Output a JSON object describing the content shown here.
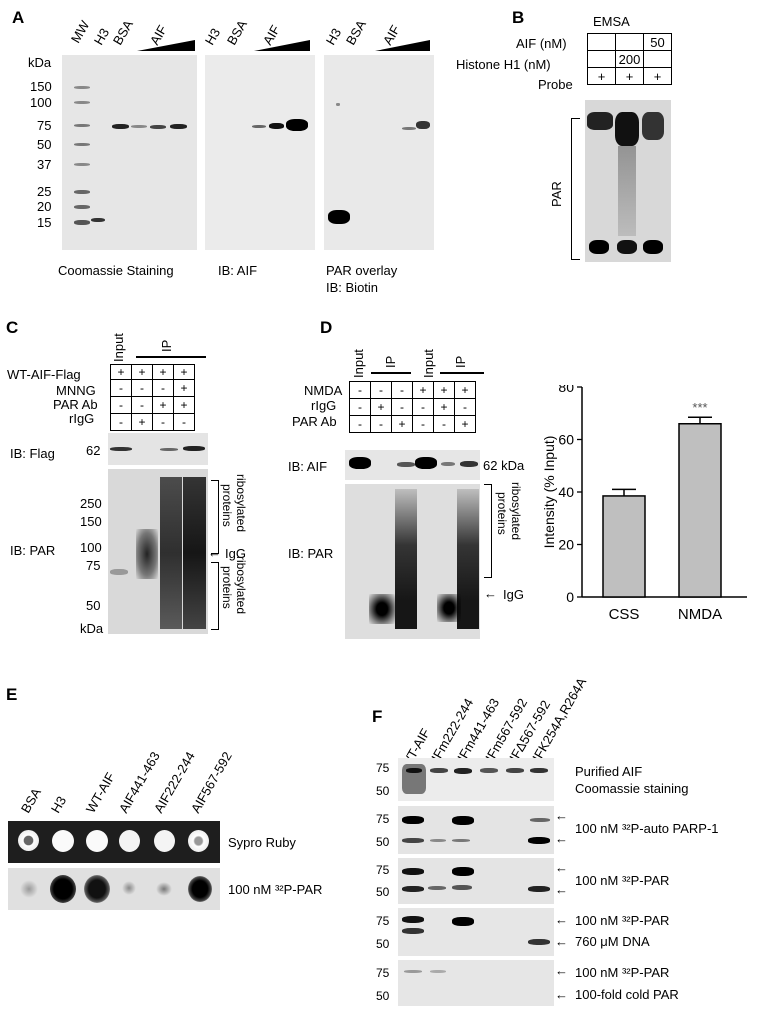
{
  "panels": {
    "A": {
      "letter": "A",
      "kda": "kDa",
      "markers": [
        "150",
        "100",
        "75",
        "50",
        "37",
        "25",
        "20",
        "15"
      ],
      "blot1_lanes": [
        "MW",
        "H3",
        "BSA",
        "AIF"
      ],
      "blot2_lanes": [
        "H3",
        "BSA",
        "AIF"
      ],
      "blot3_lanes": [
        "H3",
        "BSA",
        "AIF"
      ],
      "caption1": "Coomassie Staining",
      "caption2": "IB: AIF",
      "caption3_line1": "PAR overlay",
      "caption3_line2": "IB: Biotin"
    },
    "B": {
      "letter": "B",
      "title": "EMSA",
      "row1_label": "AIF (nM)",
      "row1_value": "50",
      "row2_label": "Histone H1 (nM)",
      "row2_value": "200",
      "row3_label": "Probe",
      "plus": "+",
      "side_label": "PAR"
    },
    "C": {
      "letter": "C",
      "input_label": "Input",
      "ip_label": "IP",
      "rows": [
        {
          "label": "WT-AIF-Flag",
          "values": [
            "+",
            "+",
            "+",
            "+"
          ]
        },
        {
          "label": "MNNG",
          "values": [
            "-",
            "-",
            "-",
            "+"
          ]
        },
        {
          "label": "PAR Ab",
          "values": [
            "-",
            "-",
            "+",
            "+"
          ]
        },
        {
          "label": "rIgG",
          "values": [
            "-",
            "+",
            "-",
            "-"
          ]
        }
      ],
      "ib_flag": "IB: Flag",
      "flag_marker": "62",
      "ib_par": "IB: PAR",
      "markers": [
        "250",
        "150",
        "100",
        "75",
        "50"
      ],
      "kda": "kDa",
      "brace_label_line1": "ribosylated",
      "brace_label_line2": "proteins",
      "igg": "IgG"
    },
    "D": {
      "letter": "D",
      "input_label": "Input",
      "ip_label": "IP",
      "rows": [
        {
          "label": "NMDA",
          "values": [
            "-",
            "-",
            "-",
            "+",
            "+",
            "+"
          ]
        },
        {
          "label": "rIgG",
          "values": [
            "-",
            "+",
            "-",
            "-",
            "+",
            "-"
          ]
        },
        {
          "label": "PAR Ab",
          "values": [
            "-",
            "-",
            "+",
            "-",
            "-",
            "+"
          ]
        }
      ],
      "ib_aif": "IB: AIF",
      "marker_62": "62 kDa",
      "ib_par": "IB: PAR",
      "brace_label_line1": "ribosylated",
      "brace_label_line2": "proteins",
      "igg": "IgG"
    },
    "E": {
      "letter": "E",
      "lanes": [
        "BSA",
        "H3",
        "WT-AIF",
        "AIF441-463",
        "AIF222-244",
        "AIF567-592"
      ],
      "row1_label": "Sypro Ruby",
      "row2_label": "100 nM ³²P-PAR"
    },
    "F": {
      "letter": "F",
      "lanes": [
        "WT-AIF",
        "AIFm222-244",
        "AIFm441-463",
        "AIFm567-592",
        "AIFΔ567-592",
        "AIFK254A,R264A"
      ],
      "markers_75": "75",
      "markers_50": "50",
      "rows": [
        {
          "line1": "Purified AIF",
          "line2": "Coomassie staining"
        },
        {
          "line1": "100 nM ³²P-auto PARP-1",
          "line2": ""
        },
        {
          "line1": "100 nM ³²P-PAR",
          "line2": ""
        },
        {
          "line1": "100 nM ³²P-PAR",
          "line2": "760 μM DNA"
        },
        {
          "line1": "100 nM ³²P-PAR",
          "line2": "100-fold cold PAR"
        }
      ]
    }
  },
  "chart_data": {
    "type": "bar",
    "categories": [
      "CSS",
      "NMDA"
    ],
    "values": [
      38.5,
      66
    ],
    "errors": [
      2.5,
      2.5
    ],
    "ylabel": "Intensity (% Input)",
    "ylim": [
      0,
      80
    ],
    "yticks": [
      0,
      20,
      40,
      60,
      80
    ],
    "annotation": "***",
    "bar_color": "#bfbfbf"
  }
}
